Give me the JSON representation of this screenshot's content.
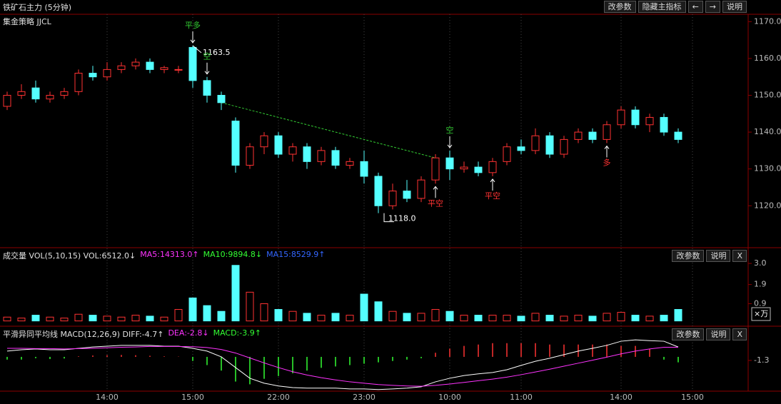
{
  "ui": {
    "title": "铁矿石主力 (5分钟)",
    "buttons": [
      "改参数",
      "隐藏主指标",
      "←",
      "→",
      "说明"
    ],
    "strategy": "集金策略 JJCL"
  },
  "chart_data": [
    {
      "type": "candlestick",
      "categories": [
        null,
        null,
        null,
        null,
        null,
        null,
        null,
        "14:00",
        null,
        null,
        null,
        null,
        null,
        "15:00",
        null,
        null,
        null,
        null,
        null,
        "22:00",
        null,
        null,
        null,
        null,
        null,
        "23:00",
        null,
        null,
        null,
        null,
        null,
        "10:00",
        null,
        null,
        null,
        null,
        "11:00",
        null,
        null,
        null,
        null,
        null,
        null,
        "14:00",
        null,
        null,
        null,
        null,
        "15:00"
      ],
      "open": [
        1147,
        1150,
        1152,
        1149,
        1150,
        1151,
        1156,
        1155,
        1157,
        1158,
        1159,
        1157,
        1157,
        1163,
        1154,
        1150,
        1143,
        1131,
        1136,
        1139,
        1134,
        1136,
        1132,
        1135,
        1131,
        1132,
        1128,
        1120,
        1124,
        1122,
        1127,
        1133,
        1130,
        1130.5,
        1129,
        1132,
        1136,
        1135,
        1139,
        1134,
        1138,
        1140,
        1138,
        1142,
        1146,
        1142,
        1144,
        1140,
        null
      ],
      "high": [
        1151,
        1153,
        1154,
        1151,
        1152,
        1157,
        1158,
        1159,
        1159,
        1160,
        1160,
        1158,
        1158,
        1163.5,
        1155,
        1151,
        1144,
        1137,
        1140,
        1140,
        1137,
        1137,
        1136,
        1136,
        1133,
        1135,
        1129,
        1126,
        1127,
        1128,
        1134,
        1135,
        1132,
        1132,
        1133,
        1137,
        1138,
        1141,
        1140,
        1139,
        1141,
        1141,
        1143,
        1147,
        1147,
        1145,
        1145,
        1141,
        null
      ],
      "low": [
        1146,
        1149,
        1148,
        1148,
        1149,
        1150,
        1154,
        1154,
        1156,
        1157,
        1156,
        1156,
        1156,
        1152,
        1148,
        1146,
        1129,
        1130,
        1134,
        1133,
        1132,
        1130,
        1131,
        1130,
        1130,
        1126,
        1118,
        1119,
        1121,
        1121,
        1126,
        1127,
        1129,
        1128,
        1128,
        1131,
        1134,
        1134,
        1133,
        1133,
        1137,
        1137,
        1137,
        1141,
        1141,
        1140,
        1139,
        1137,
        null
      ],
      "close": [
        1150,
        1151,
        1149,
        1150,
        1151,
        1156,
        1155,
        1157,
        1158,
        1159,
        1157,
        1157.5,
        1157,
        1154,
        1150,
        1148,
        1131,
        1136,
        1139,
        1134,
        1136,
        1132,
        1135,
        1131,
        1132,
        1128,
        1120,
        1124,
        1122,
        1127,
        1133,
        1130,
        1130.5,
        1129,
        1132,
        1136,
        1135,
        1139,
        1134,
        1138,
        1140,
        1138,
        1142,
        1146,
        1142,
        1144,
        1140,
        1138,
        null
      ],
      "up_color": "#ff3232",
      "down_color": "#54ffff",
      "ylim": [
        1109,
        1172
      ],
      "yticks": [
        {
          "value": 1170,
          "label": "1170.0"
        },
        {
          "value": 1160,
          "label": "1160.0"
        },
        {
          "value": 1150,
          "label": "1150.0"
        },
        {
          "value": 1140,
          "label": "1140.0"
        },
        {
          "value": 1130,
          "label": "1130.0"
        },
        {
          "value": 1120,
          "label": "1120.0"
        }
      ],
      "extremes": [
        {
          "text": "1163.5",
          "at": 13,
          "kind": "high"
        },
        {
          "text": "1118.0",
          "at": 26,
          "kind": "low"
        }
      ],
      "signals": [
        {
          "text": "平多",
          "at": 13,
          "side": "above",
          "color": "#33cc33"
        },
        {
          "text": "空",
          "at": 14,
          "side": "above",
          "color": "#33cc33"
        },
        {
          "text": "平空",
          "at": 30,
          "side": "below",
          "color": "#ff3232"
        },
        {
          "text": "空",
          "at": 31,
          "side": "above",
          "color": "#33cc33"
        },
        {
          "text": "平空",
          "at": 34,
          "side": "below",
          "color": "#ff3232"
        },
        {
          "text": "多",
          "at": 42,
          "side": "below",
          "color": "#ff3232"
        }
      ],
      "trend_line": {
        "from_index": 15,
        "from_value": 1148,
        "to_index": 30,
        "to_value": 1133,
        "color": "#33cc33"
      }
    },
    {
      "type": "bar",
      "header": [
        {
          "text": "成交量 VOL(5,10,15) VOL:6512.0↓",
          "color": "#e0e0e0"
        },
        {
          "text": "MA5:14313.0↑",
          "color": "#ff33ff"
        },
        {
          "text": "MA10:9894.8↓",
          "color": "#33ff33"
        },
        {
          "text": "MA15:8529.9↑",
          "color": "#3366ff"
        }
      ],
      "buttons": [
        "改参数",
        "说明",
        "X"
      ],
      "unit": "×万",
      "values": [
        0.2,
        0.15,
        0.3,
        0.2,
        0.15,
        0.35,
        0.3,
        0.25,
        0.2,
        0.3,
        0.25,
        0.2,
        0.6,
        1.2,
        0.8,
        0.5,
        2.9,
        1.5,
        0.9,
        0.6,
        0.5,
        0.4,
        0.3,
        0.4,
        0.3,
        1.4,
        1.0,
        0.5,
        0.4,
        0.4,
        0.6,
        0.5,
        0.3,
        0.3,
        0.3,
        0.3,
        0.25,
        0.4,
        0.3,
        0.25,
        0.3,
        0.25,
        0.4,
        0.45,
        0.3,
        0.25,
        0.3,
        0.6,
        null
      ],
      "ylim": [
        -0.2,
        3.45
      ],
      "yticks": [
        {
          "value": 3.0,
          "label": "3.0"
        },
        1.9,
        0.9
      ]
    },
    {
      "type": "macd",
      "header": [
        {
          "text": "平滑异同平均线 MACD(12,26,9) DIFF:-4.7↑",
          "color": "#e0e0e0"
        },
        {
          "text": "DEA:-2.8↓",
          "color": "#ff33ff"
        },
        {
          "text": "MACD:-3.9↑",
          "color": "#33ff33"
        }
      ],
      "buttons": [
        "改参数",
        "说明",
        "X"
      ],
      "series": [
        {
          "name": "DIFF",
          "color": "#ffffff",
          "values": [
            2.1,
            2.6,
            2.9,
            2.6,
            2.6,
            3.1,
            3.6,
            3.9,
            4.2,
            4.2,
            4.2,
            3.9,
            3.9,
            3.1,
            2.1,
            0,
            -3.9,
            -7.8,
            -9.6,
            -10.6,
            -11.2,
            -11.4,
            -11.4,
            -11.4,
            -11.7,
            -11.7,
            -11.9,
            -11.7,
            -11.4,
            -10.9,
            -9.1,
            -7.8,
            -6.8,
            -6.2,
            -5.7,
            -4.7,
            -3.1,
            -1.6,
            -0.5,
            0.8,
            2.1,
            3.1,
            4.2,
            5.7,
            6.2,
            5.9,
            5.7,
            3.6,
            null
          ]
        },
        {
          "name": "DEA",
          "color": "#ff33ff",
          "values": [
            3.1,
            3.1,
            3.0,
            3.0,
            2.9,
            3.0,
            3.1,
            3.3,
            3.5,
            3.6,
            3.8,
            3.8,
            3.8,
            3.7,
            3.4,
            2.7,
            1.4,
            -0.4,
            -2.2,
            -3.9,
            -5.4,
            -6.6,
            -7.6,
            -8.4,
            -9.1,
            -9.6,
            -10.1,
            -10.4,
            -10.6,
            -10.7,
            -10.4,
            -9.9,
            -9.3,
            -8.7,
            -8.1,
            -7.4,
            -6.5,
            -5.5,
            -4.5,
            -3.4,
            -2.3,
            -1.2,
            -0.1,
            1.1,
            2.1,
            2.9,
            3.5,
            3.5,
            null
          ]
        }
      ],
      "histogram": [
        -1,
        -1,
        -0.5,
        -0.8,
        -0.6,
        0.2,
        0.5,
        0.6,
        0.7,
        0.6,
        0.4,
        0.2,
        0.1,
        -1.5,
        -3,
        -5,
        -9,
        -10,
        -8,
        -7,
        -6,
        -5,
        -4,
        -3.5,
        -3,
        -2.5,
        -2,
        -1.5,
        -1,
        -0.5,
        1.5,
        3,
        4,
        4.5,
        5,
        5,
        5,
        5,
        4.5,
        4.5,
        4.5,
        4.5,
        4.5,
        4,
        4,
        3,
        -1,
        -2,
        null
      ],
      "up_color": "#ff3232",
      "down_color": "#33ff33",
      "ylim": [
        -12.5,
        10.4
      ],
      "yticks": [
        -1.3
      ]
    }
  ]
}
